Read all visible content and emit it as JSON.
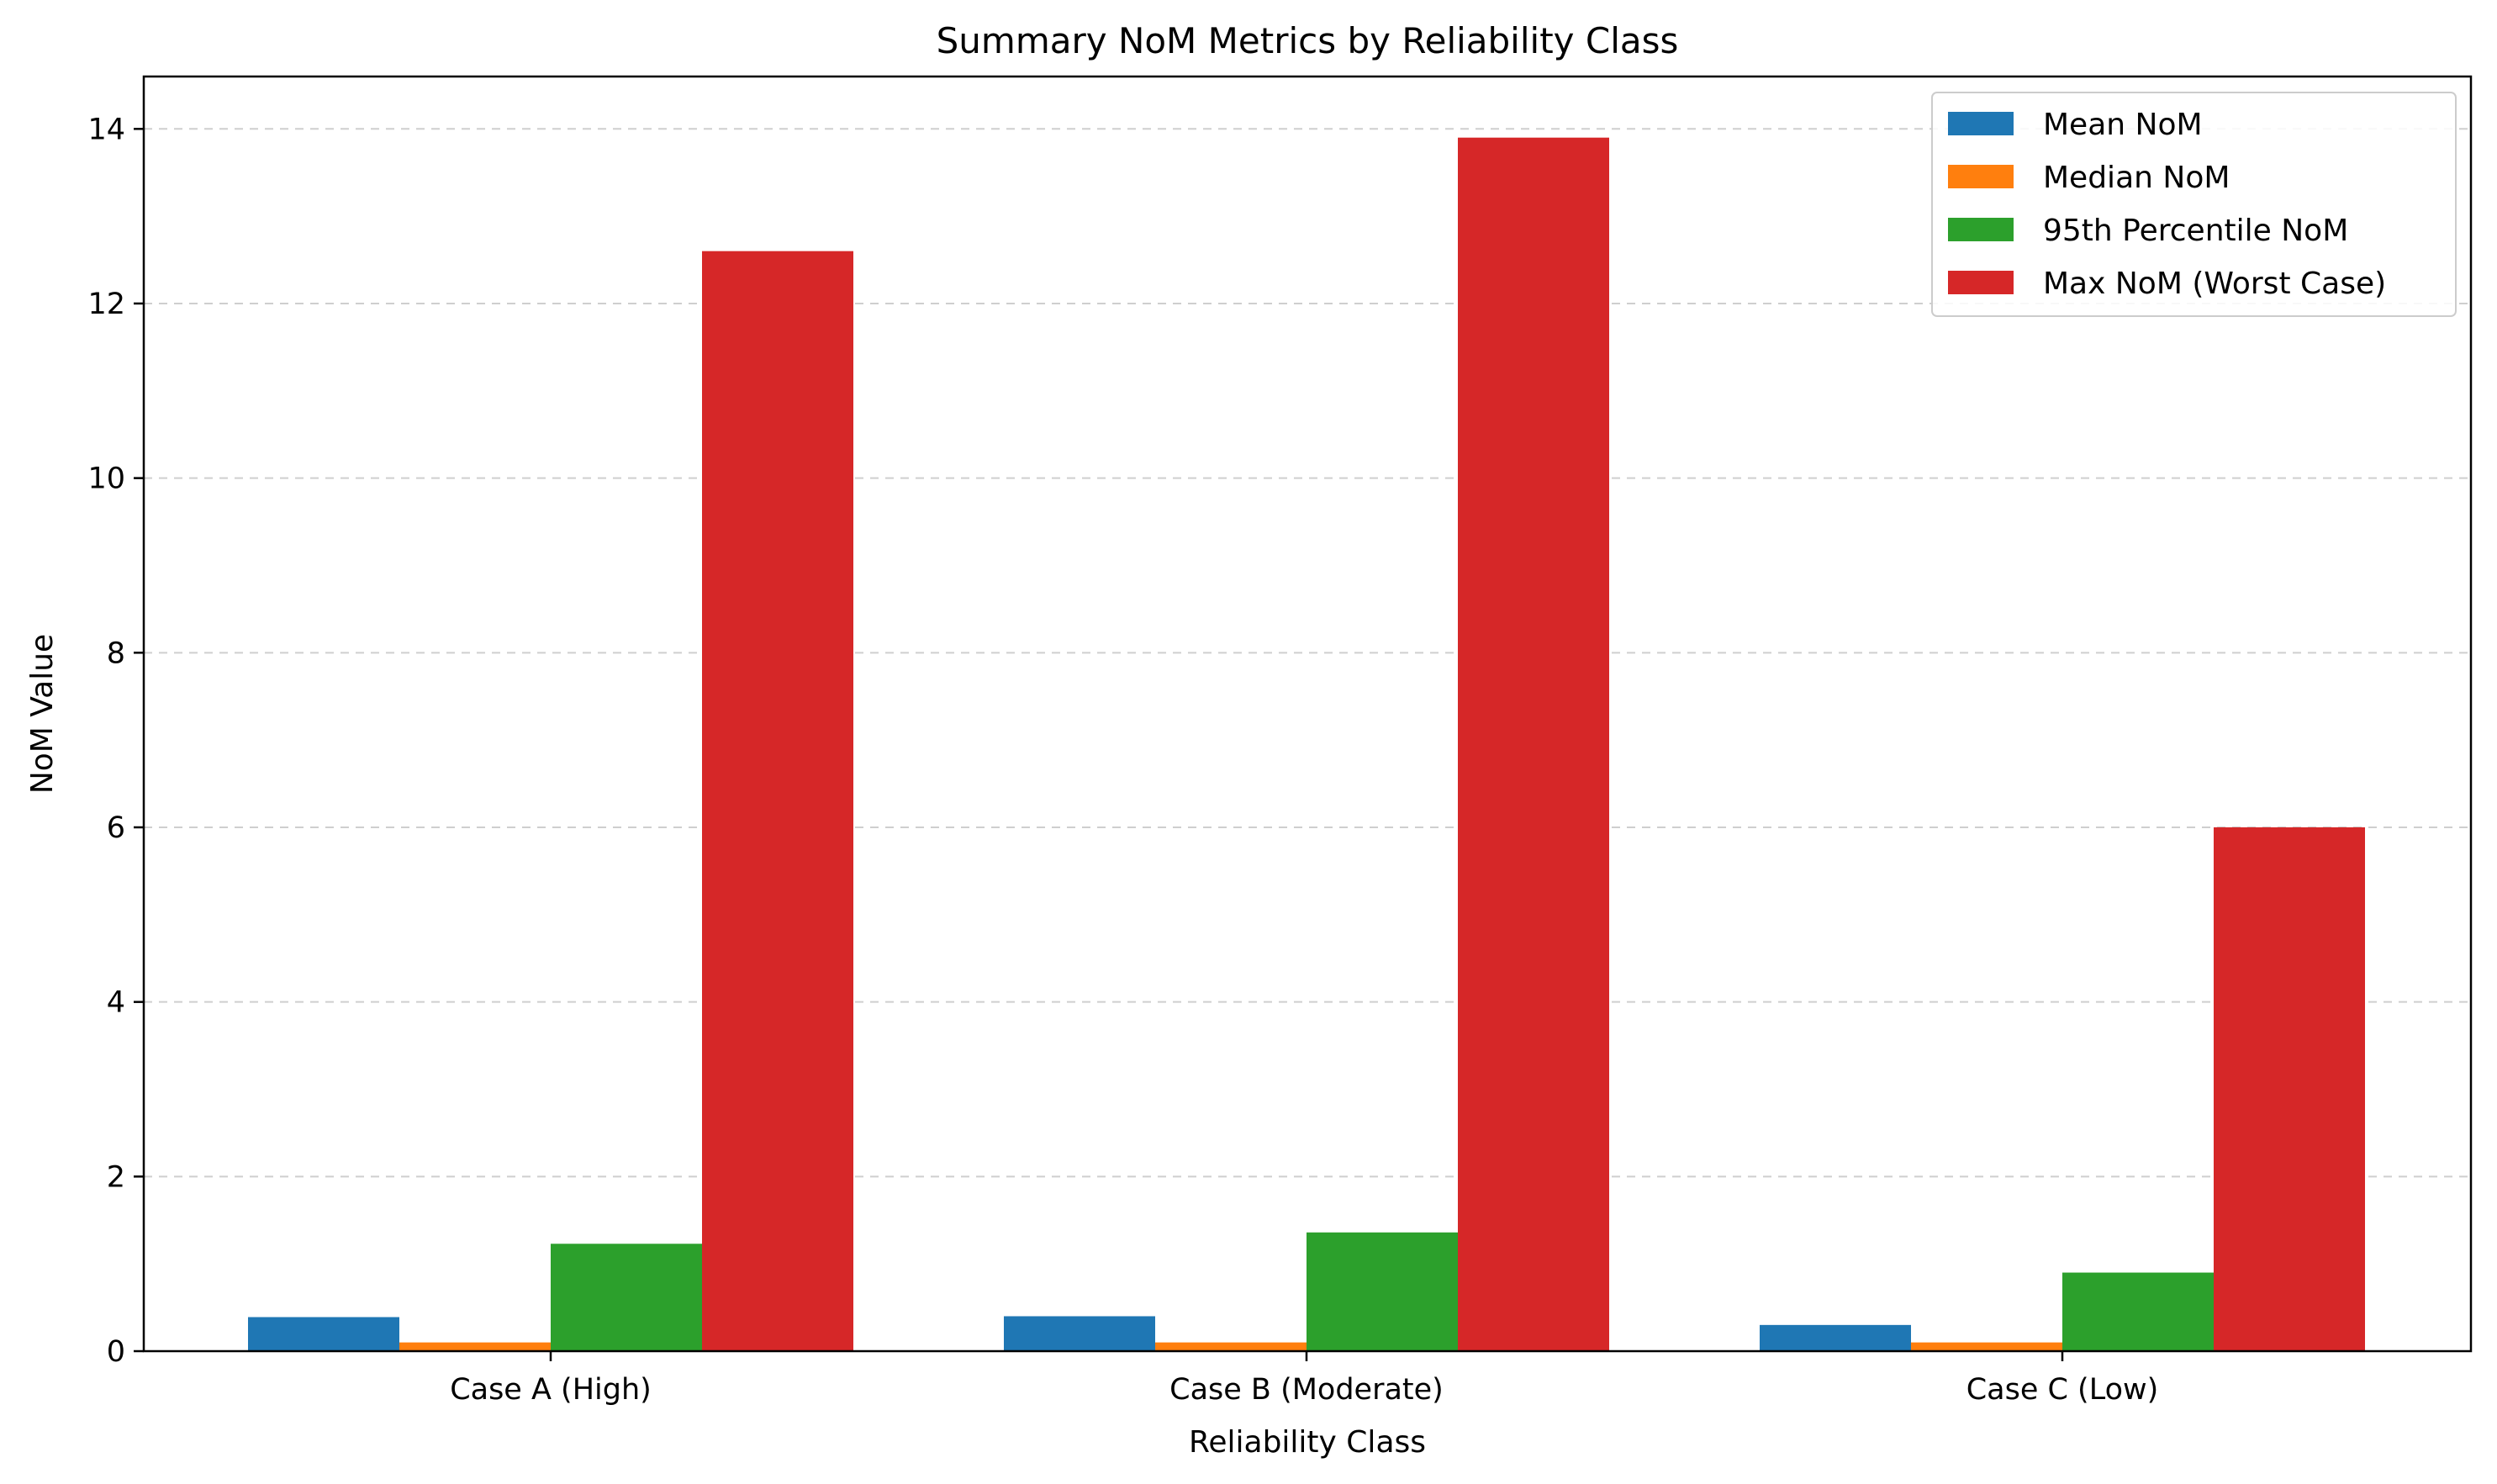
{
  "chart_data": {
    "type": "bar",
    "title": "Summary NoM Metrics by Reliability Class",
    "xlabel": "Reliability Class",
    "ylabel": "NoM Value",
    "categories": [
      "Case A (High)",
      "Case B (Moderate)",
      "Case C (Low)"
    ],
    "ylim": [
      0,
      14.6
    ],
    "yticks": [
      0,
      2,
      4,
      6,
      8,
      10,
      12,
      14
    ],
    "grid": "y-dashed",
    "legend_position": "top-right",
    "series": [
      {
        "name": "Mean NoM",
        "color": "#1f77b4",
        "values": [
          0.39,
          0.4,
          0.3
        ]
      },
      {
        "name": "Median NoM",
        "color": "#ff7f0e",
        "values": [
          0.1,
          0.1,
          0.1
        ]
      },
      {
        "name": "95th Percentile NoM",
        "color": "#2ca02c",
        "values": [
          1.23,
          1.36,
          0.9
        ]
      },
      {
        "name": "Max NoM (Worst Case)",
        "color": "#d62728",
        "values": [
          12.6,
          13.9,
          6.0
        ]
      }
    ]
  }
}
